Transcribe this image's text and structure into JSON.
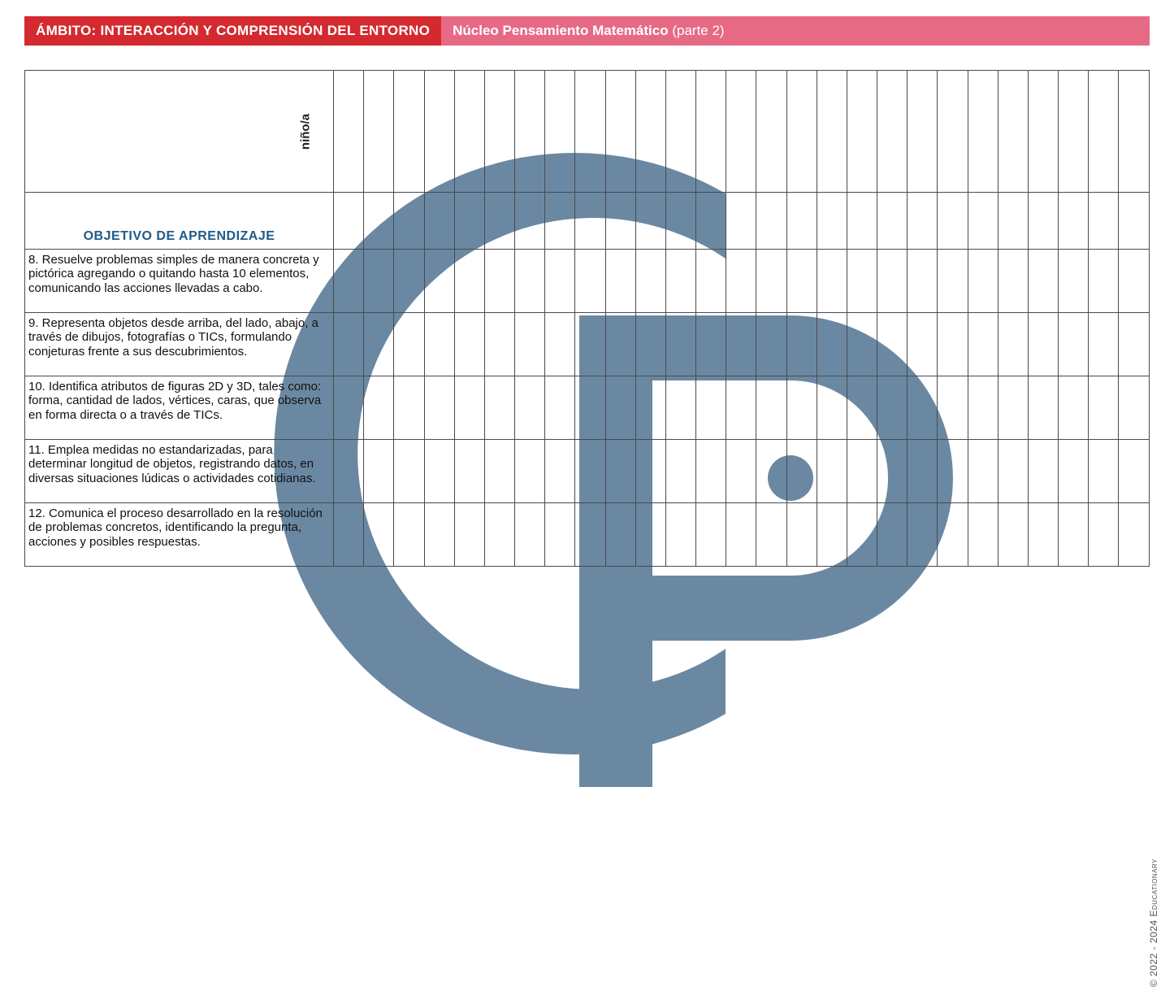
{
  "colors": {
    "header_left_bg": "#d42a2f",
    "header_right_bg": "#e76a85",
    "header_text": "#ffffff",
    "obj_header_text": "#1f5a8a",
    "border": "#4a4a4a",
    "watermark": "#6b88a3",
    "copyright_text": "#555555"
  },
  "header": {
    "left": "ÁMBITO: INTERACCIÓN Y COMPRENSIÓN DEL ENTORNO",
    "right_bold": "Núcleo Pensamiento Matemático",
    "right_light": " (parte 2)"
  },
  "table": {
    "child_label": "niño/a",
    "objective_header": "OBJETIVO DE APRENDIZAJE",
    "num_columns": 27,
    "objectives": [
      "8. Resuelve problemas simples de manera concreta y pictórica agregando o quitando hasta 10 elementos, comunicando las acciones llevadas a cabo.",
      "9. Representa objetos desde arriba, del lado, abajo, a través de dibujos, fotografías o TICs, formulando conjeturas frente a sus descubrimientos.",
      "10. Identifica atributos de figuras 2D y 3D, tales como: forma, cantidad de lados, vértices, caras, que observa en forma directa o a través de TICs.",
      "11. Emplea medidas no estandarizadas, para determinar longitud de objetos, registrando datos, en diversas situaciones lúdicas o actividades cotidianas.",
      "12. Comunica el proceso desarrollado en la resolución de problemas concretos, identificando la pregunta, acciones y posibles respuestas."
    ]
  },
  "copyright": "© 2022 - 2024 Educationary"
}
